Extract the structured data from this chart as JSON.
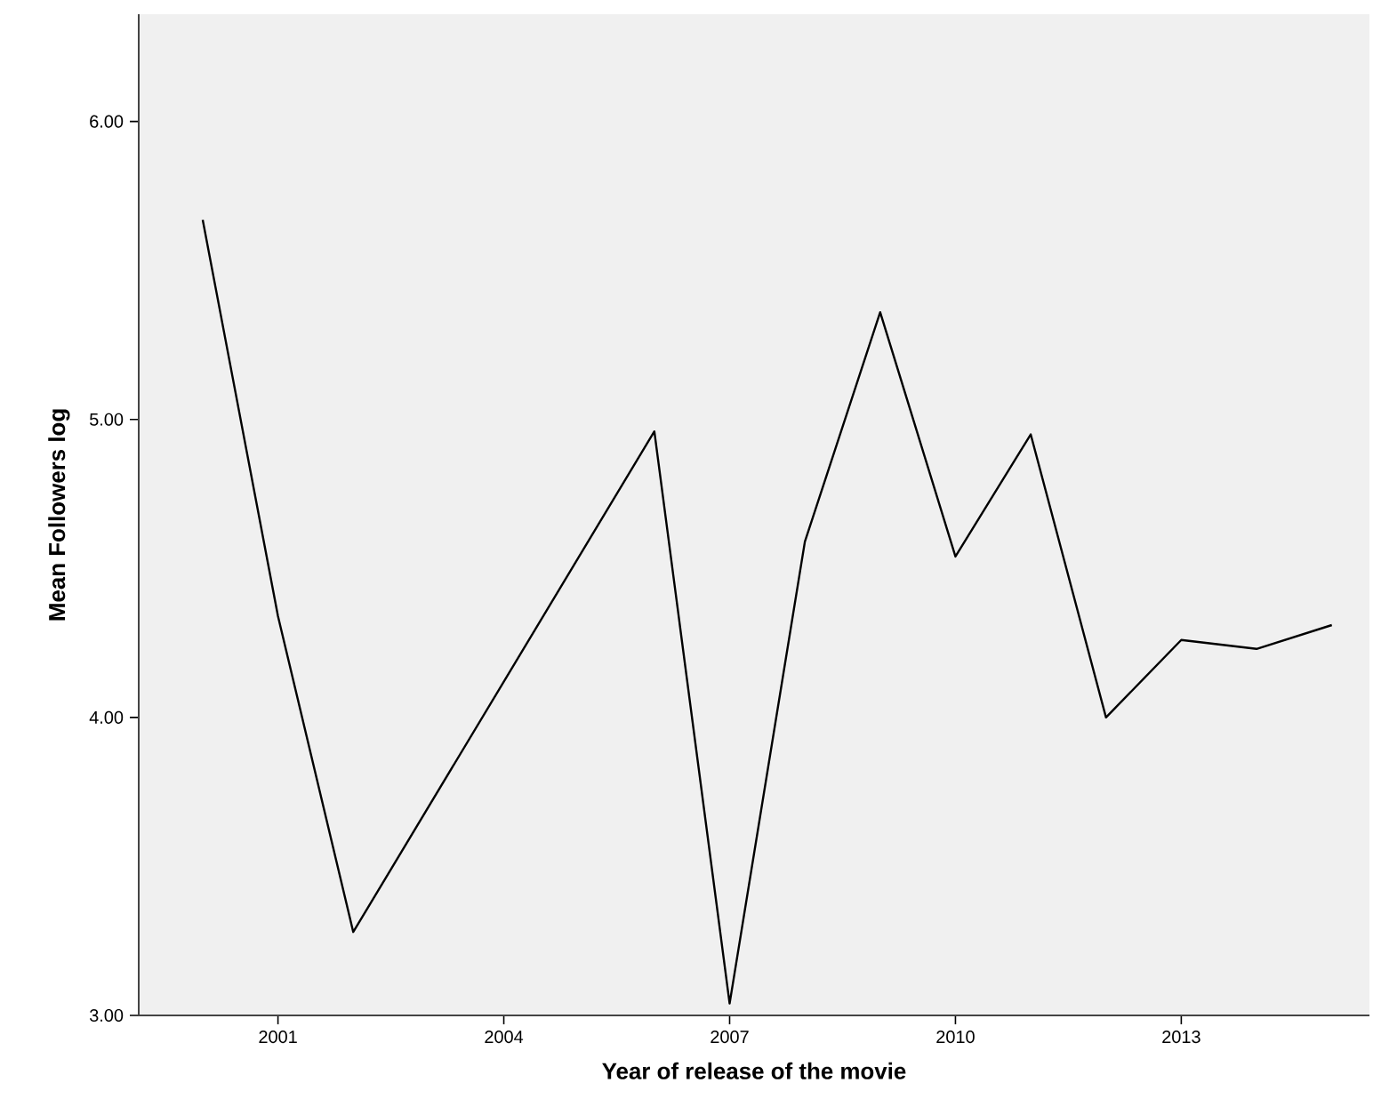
{
  "chart_data": {
    "type": "line",
    "xlabel": "Year of release of the movie",
    "ylabel": "Mean Followers log",
    "x": [
      2000,
      2001,
      2002,
      2006,
      2007,
      2008,
      2009,
      2010,
      2011,
      2012,
      2013,
      2014,
      2015
    ],
    "series": [
      {
        "color": "#000000",
        "values": [
          5.67,
          4.34,
          3.28,
          4.96,
          3.04,
          4.59,
          5.36,
          4.54,
          4.95,
          4.0,
          4.26,
          4.23,
          4.31
        ]
      }
    ],
    "xlim": [
      1999.15,
      2015.5
    ],
    "ylim": [
      3,
      6.36
    ],
    "xticks": [
      2001,
      2004,
      2007,
      2010,
      2013
    ],
    "yticks": [
      {
        "value": 3,
        "label": "3.00"
      },
      {
        "value": 4,
        "label": "4.00"
      },
      {
        "value": 5,
        "label": "5.00"
      },
      {
        "value": 6,
        "label": "6.00"
      }
    ],
    "grid": false,
    "marker": "none",
    "line_style": "solid"
  }
}
